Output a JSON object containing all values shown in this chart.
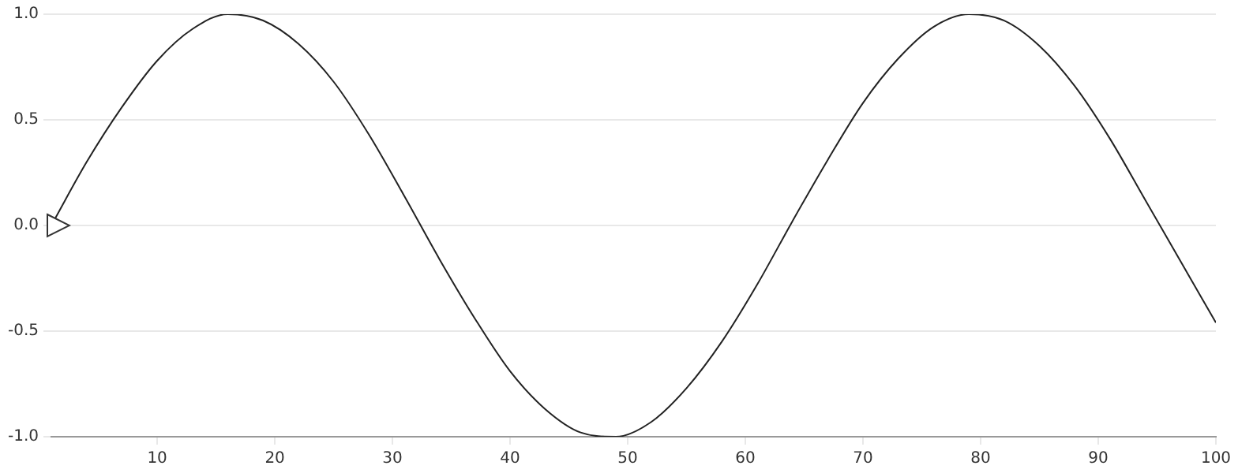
{
  "chart_data": {
    "type": "line",
    "x": [
      1,
      4,
      7,
      10,
      13,
      16,
      19,
      22,
      25,
      28,
      31,
      34,
      37,
      40,
      43,
      46,
      49,
      52,
      55,
      58,
      61,
      64,
      67,
      70,
      73,
      76,
      79,
      82,
      85,
      88,
      91,
      94,
      97,
      100
    ],
    "series": [
      {
        "color": "#222222",
        "values": [
          0,
          0.3,
          0.56,
          0.78,
          0.93,
          1,
          0.97,
          0.86,
          0.68,
          0.43,
          0.14,
          -0.16,
          -0.44,
          -0.69,
          -0.87,
          -0.98,
          -1,
          -0.93,
          -0.77,
          -0.55,
          -0.28,
          0.02,
          0.31,
          0.58,
          0.79,
          0.94,
          1,
          0.97,
          0.85,
          0.66,
          0.41,
          0.12,
          -0.17,
          -0.46
        ]
      }
    ],
    "xlim": [
      1,
      100
    ],
    "xticks": [
      10,
      20,
      30,
      40,
      50,
      60,
      70,
      80,
      90,
      100
    ],
    "ylim": [
      -1,
      1
    ],
    "yticks": [
      {
        "value": -1,
        "label": "-1.0"
      },
      {
        "value": -0.5,
        "label": "-0.5"
      },
      {
        "value": 0,
        "label": "0.0"
      },
      {
        "value": 0.5,
        "label": "0.5"
      },
      {
        "value": 1,
        "label": "1.0"
      }
    ],
    "grid": "y",
    "legend": false,
    "marker": "none",
    "line_style": "solid"
  }
}
